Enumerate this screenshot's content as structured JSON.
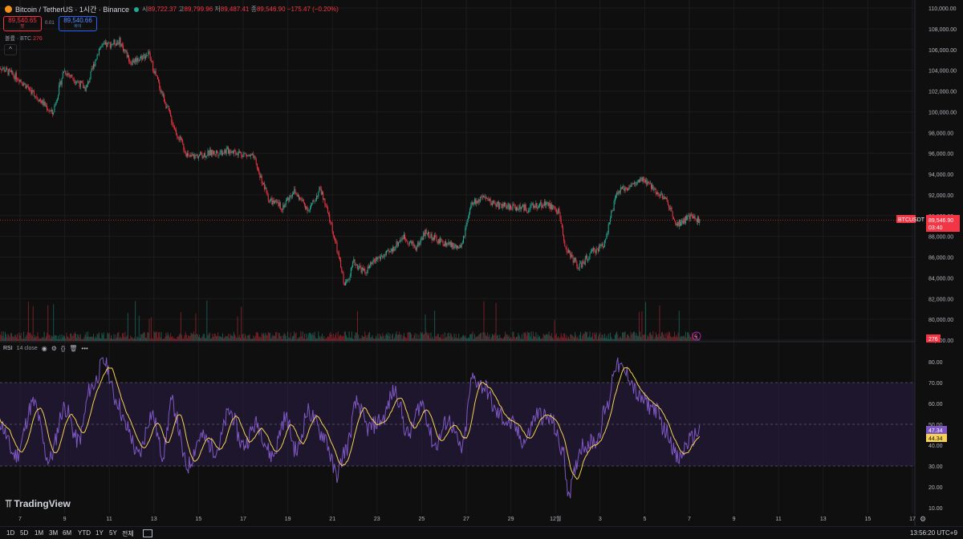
{
  "header": {
    "symbol": "Bitcoin / TetherUS · 1시간 · Binance",
    "ohlc": [
      {
        "k": "시",
        "v": "89,722.37"
      },
      {
        "k": "고",
        "v": "89,799.96"
      },
      {
        "k": "저",
        "v": "89,487.41"
      },
      {
        "k": "종",
        "v": "89,546.90"
      }
    ],
    "change": "−175.47 (−0.20%)",
    "sell_price": "89,540.65",
    "sell_label": "팔",
    "spread": "0.01",
    "buy_price": "89,540.66",
    "buy_label": "바이",
    "volume_label": "볼륨 · BTC",
    "volume_value": "276",
    "collapse_icon": "chevron-up-icon"
  },
  "price_axis": {
    "labels": [
      "110,000.00",
      "108,000.00",
      "106,000.00",
      "104,000.00",
      "102,000.00",
      "100,000.00",
      "98,000.00",
      "96,000.00",
      "94,000.00",
      "92,000.00",
      "90,000.00",
      "88,000.00",
      "86,000.00",
      "84,000.00",
      "82,000.00",
      "80,000.00",
      "78,000.00"
    ],
    "current_tag": {
      "symbol": "BTCUSDT",
      "price": "89,546.90",
      "countdown": "03:40"
    },
    "volume_tag": "276"
  },
  "rsi": {
    "label": "RSI",
    "params": "14 close",
    "axis_labels": [
      "80.00",
      "70.00",
      "60.00",
      "50.00",
      "40.00",
      "30.00",
      "20.00",
      "10.00"
    ],
    "rsi_tag": "47.34",
    "ma_tag": "44.34",
    "icons": [
      "eye-icon",
      "settings-icon",
      "braces-icon",
      "trash-icon",
      "more-icon"
    ]
  },
  "time_axis": {
    "labels": [
      "7",
      "9",
      "11",
      "13",
      "15",
      "17",
      "19",
      "21",
      "23",
      "25",
      "27",
      "29",
      "12월",
      "3",
      "5",
      "7",
      "9",
      "11",
      "13",
      "15",
      "17"
    ]
  },
  "bottom_bar": {
    "ranges": [
      "1D",
      "5D",
      "1M",
      "3M",
      "6M",
      "YTD",
      "1Y",
      "5Y",
      "전체"
    ],
    "clock": "13:56:20 UTC+9"
  },
  "branding": {
    "logo_text": "TradingView"
  },
  "colors": {
    "up": "#22ab94",
    "down": "#f23645",
    "rsi_line": "#7e57c2",
    "rsi_ma": "#f7d154",
    "rsi_band": "#2a1d45",
    "background": "#0f0f0f",
    "grid": "#1c1c1c"
  },
  "chart_data": {
    "type": "candlestick",
    "price_range": [
      78000,
      110000
    ],
    "price_path": [
      {
        "day": 6,
        "price": 104500
      },
      {
        "day": 7,
        "price": 103200
      },
      {
        "day": 8,
        "price": 101000
      },
      {
        "day": 8.5,
        "price": 99800
      },
      {
        "day": 9,
        "price": 104000
      },
      {
        "day": 10,
        "price": 102200
      },
      {
        "day": 10.6,
        "price": 106200
      },
      {
        "day": 11.5,
        "price": 106800
      },
      {
        "day": 12,
        "price": 104800
      },
      {
        "day": 12.8,
        "price": 105600
      },
      {
        "day": 13.2,
        "price": 103000
      },
      {
        "day": 14,
        "price": 98200
      },
      {
        "day": 14.6,
        "price": 95600
      },
      {
        "day": 15.5,
        "price": 96000
      },
      {
        "day": 16.5,
        "price": 96300
      },
      {
        "day": 17.5,
        "price": 95600
      },
      {
        "day": 18.2,
        "price": 91500
      },
      {
        "day": 18.8,
        "price": 90800
      },
      {
        "day": 19.3,
        "price": 92400
      },
      {
        "day": 20,
        "price": 90500
      },
      {
        "day": 20.5,
        "price": 92600
      },
      {
        "day": 21,
        "price": 89000
      },
      {
        "day": 21.3,
        "price": 86200
      },
      {
        "day": 21.6,
        "price": 83200
      },
      {
        "day": 22,
        "price": 85500
      },
      {
        "day": 22.5,
        "price": 84500
      },
      {
        "day": 23,
        "price": 85800
      },
      {
        "day": 23.6,
        "price": 86400
      },
      {
        "day": 24.2,
        "price": 88000
      },
      {
        "day": 24.8,
        "price": 86900
      },
      {
        "day": 25.2,
        "price": 88400
      },
      {
        "day": 25.8,
        "price": 87500
      },
      {
        "day": 26.3,
        "price": 87200
      },
      {
        "day": 26.8,
        "price": 86800
      },
      {
        "day": 27.3,
        "price": 91200
      },
      {
        "day": 27.8,
        "price": 91600
      },
      {
        "day": 28.5,
        "price": 91000
      },
      {
        "day": 29.2,
        "price": 90800
      },
      {
        "day": 29.8,
        "price": 90700
      },
      {
        "day": 30.6,
        "price": 91200
      },
      {
        "day": 31.2,
        "price": 90300
      },
      {
        "day": 31.5,
        "price": 86800
      },
      {
        "day": 32.1,
        "price": 85000
      },
      {
        "day": 32.7,
        "price": 86500
      },
      {
        "day": 33.2,
        "price": 87200
      },
      {
        "day": 33.8,
        "price": 92200
      },
      {
        "day": 34.3,
        "price": 92800
      },
      {
        "day": 35,
        "price": 93400
      },
      {
        "day": 35.6,
        "price": 92300
      },
      {
        "day": 36,
        "price": 91500
      },
      {
        "day": 36.5,
        "price": 89200
      },
      {
        "day": 37.1,
        "price": 89900
      },
      {
        "day": 37.5,
        "price": 89546.9
      }
    ],
    "rsi_path": [
      {
        "day": 6,
        "rsi": 52
      },
      {
        "day": 6.8,
        "rsi": 35
      },
      {
        "day": 7.6,
        "rsi": 60
      },
      {
        "day": 8.3,
        "rsi": 33
      },
      {
        "day": 9,
        "rsi": 58
      },
      {
        "day": 9.6,
        "rsi": 42
      },
      {
        "day": 10.2,
        "rsi": 68
      },
      {
        "day": 10.8,
        "rsi": 80
      },
      {
        "day": 11.3,
        "rsi": 62
      },
      {
        "day": 11.8,
        "rsi": 48
      },
      {
        "day": 12.3,
        "rsi": 35
      },
      {
        "day": 12.9,
        "rsi": 55
      },
      {
        "day": 13.4,
        "rsi": 36
      },
      {
        "day": 13.8,
        "rsi": 60
      },
      {
        "day": 14.5,
        "rsi": 30
      },
      {
        "day": 15.1,
        "rsi": 44
      },
      {
        "day": 15.8,
        "rsi": 38
      },
      {
        "day": 16.4,
        "rsi": 56
      },
      {
        "day": 17,
        "rsi": 40
      },
      {
        "day": 17.6,
        "rsi": 50
      },
      {
        "day": 18.3,
        "rsi": 35
      },
      {
        "day": 18.9,
        "rsi": 53
      },
      {
        "day": 19.4,
        "rsi": 37
      },
      {
        "day": 19.9,
        "rsi": 56
      },
      {
        "day": 20.6,
        "rsi": 45
      },
      {
        "day": 21.2,
        "rsi": 26
      },
      {
        "day": 21.6,
        "rsi": 38
      },
      {
        "day": 22.1,
        "rsi": 60
      },
      {
        "day": 22.6,
        "rsi": 48
      },
      {
        "day": 23.2,
        "rsi": 52
      },
      {
        "day": 23.8,
        "rsi": 66
      },
      {
        "day": 24.4,
        "rsi": 45
      },
      {
        "day": 25,
        "rsi": 60
      },
      {
        "day": 25.6,
        "rsi": 40
      },
      {
        "day": 26.2,
        "rsi": 52
      },
      {
        "day": 26.8,
        "rsi": 38
      },
      {
        "day": 27.3,
        "rsi": 72
      },
      {
        "day": 27.8,
        "rsi": 68
      },
      {
        "day": 28.4,
        "rsi": 55
      },
      {
        "day": 29,
        "rsi": 50
      },
      {
        "day": 29.6,
        "rsi": 42
      },
      {
        "day": 30.2,
        "rsi": 55
      },
      {
        "day": 30.8,
        "rsi": 52
      },
      {
        "day": 31.3,
        "rsi": 38
      },
      {
        "day": 31.6,
        "rsi": 18
      },
      {
        "day": 32.2,
        "rsi": 40
      },
      {
        "day": 32.8,
        "rsi": 42
      },
      {
        "day": 33.3,
        "rsi": 58
      },
      {
        "day": 33.7,
        "rsi": 79
      },
      {
        "day": 34.2,
        "rsi": 74
      },
      {
        "day": 34.8,
        "rsi": 62
      },
      {
        "day": 35.4,
        "rsi": 58
      },
      {
        "day": 36,
        "rsi": 46
      },
      {
        "day": 36.5,
        "rsi": 33
      },
      {
        "day": 37,
        "rsi": 42
      },
      {
        "day": 37.5,
        "rsi": 47.34
      }
    ]
  }
}
